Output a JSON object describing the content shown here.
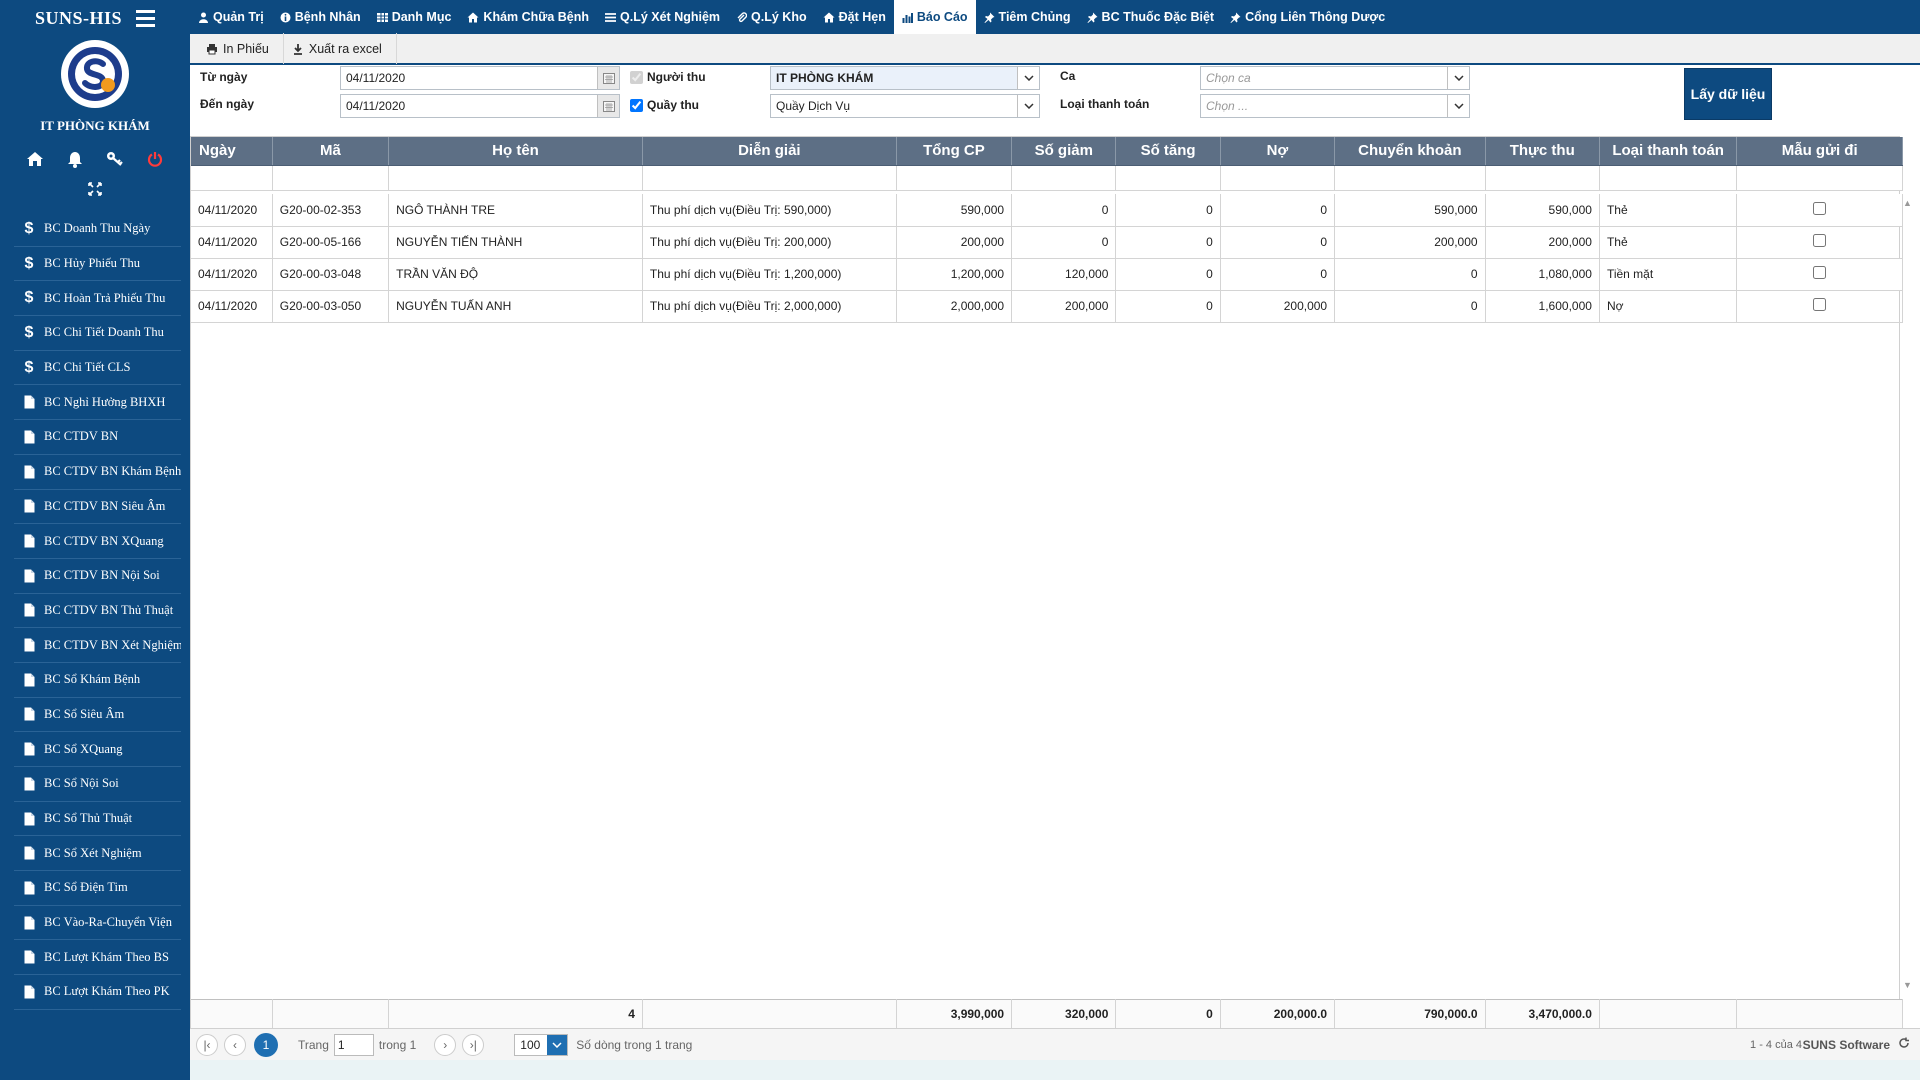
{
  "app": {
    "title": "SUNS-HIS",
    "unit": "IT PHÒNG KHÁM"
  },
  "nav": [
    {
      "label": "Quản Trị",
      "icon": "user-icon"
    },
    {
      "label": "Bệnh Nhân",
      "icon": "info-icon"
    },
    {
      "label": "Danh Mục",
      "icon": "table-icon"
    },
    {
      "label": "Khám Chữa Bệnh",
      "icon": "home-icon"
    },
    {
      "label": "Q.Lý Xét Nghiệm",
      "icon": "list-icon"
    },
    {
      "label": "Q.Lý Kho",
      "icon": "paperclip-icon"
    },
    {
      "label": "Đặt Hẹn",
      "icon": "home-icon"
    },
    {
      "label": "Báo Cáo",
      "icon": "bar-chart-icon",
      "active": true
    },
    {
      "label": "Tiêm Chủng",
      "icon": "pin-icon"
    },
    {
      "label": "BC Thuốc Đặc Biệt",
      "icon": "pin-icon"
    },
    {
      "label": "Cổng Liên Thông Dược",
      "icon": "pin-icon"
    }
  ],
  "sidebar": {
    "items": [
      {
        "label": "BC Doanh Thu Ngày",
        "icon": "dollar-icon"
      },
      {
        "label": "BC Hủy Phiếu Thu",
        "icon": "dollar-icon"
      },
      {
        "label": "BC Hoàn Trả Phiếu Thu",
        "icon": "dollar-icon"
      },
      {
        "label": "BC Chi Tiết Doanh Thu",
        "icon": "dollar-icon"
      },
      {
        "label": "BC Chi Tiết CLS",
        "icon": "dollar-icon"
      },
      {
        "label": "BC Nghỉ Hưởng BHXH",
        "icon": "file-icon"
      },
      {
        "label": "BC CTDV BN",
        "icon": "file-icon"
      },
      {
        "label": "BC CTDV BN Khám Bệnh",
        "icon": "file-icon"
      },
      {
        "label": "BC CTDV BN Siêu Âm",
        "icon": "file-icon"
      },
      {
        "label": "BC CTDV BN XQuang",
        "icon": "file-icon"
      },
      {
        "label": "BC CTDV BN Nội Soi",
        "icon": "file-icon"
      },
      {
        "label": "BC CTDV BN Thủ Thuật",
        "icon": "file-icon"
      },
      {
        "label": "BC CTDV BN Xét Nghiệm",
        "icon": "file-icon"
      },
      {
        "label": "BC Sổ Khám Bệnh",
        "icon": "file-icon"
      },
      {
        "label": "BC Sổ Siêu Âm",
        "icon": "file-icon"
      },
      {
        "label": "BC Sổ XQuang",
        "icon": "file-icon"
      },
      {
        "label": "BC Sổ Nội Soi",
        "icon": "file-icon"
      },
      {
        "label": "BC Sổ Thủ Thuật",
        "icon": "file-icon"
      },
      {
        "label": "BC Sổ Xét Nghiệm",
        "icon": "file-icon"
      },
      {
        "label": "BC Sổ Điện Tim",
        "icon": "file-icon"
      },
      {
        "label": "BC Vào-Ra-Chuyển Viện",
        "icon": "file-icon"
      },
      {
        "label": "BC Lượt Khám Theo BS",
        "icon": "file-icon"
      },
      {
        "label": "BC Lượt Khám Theo PK",
        "icon": "file-icon"
      }
    ]
  },
  "toolbar": {
    "print_label": "In Phiếu",
    "export_label": "Xuất ra excel"
  },
  "filters": {
    "from_label": "Từ ngày",
    "from_value": "04/11/2020",
    "to_label": "Đến ngày",
    "to_value": "04/11/2020",
    "collector_label": "Người thu",
    "collector_value": "IT PHÒNG KHÁM",
    "counter_label": "Quầy thu",
    "counter_value": "Quầy Dịch Vụ",
    "shift_label": "Ca",
    "shift_placeholder": "Chọn ca",
    "paytype_label": "Loại thanh toán",
    "paytype_placeholder": "Chọn ...",
    "fetch_label": "Lấy dữ liệu"
  },
  "table": {
    "columns": [
      "Ngày",
      "Mã",
      "Họ tên",
      "Diễn giải",
      "Tổng CP",
      "Số giảm",
      "Số tăng",
      "Nợ",
      "Chuyển khoản",
      "Thực thu",
      "Loại thanh toán",
      "Mẫu gửi đi"
    ],
    "rows": [
      [
        "04/11/2020",
        "G20-00-02-353",
        "NGÔ THÀNH TRE",
        "Thu phí dịch vụ(Điều Trị: 590,000)",
        "590,000",
        "0",
        "0",
        "0",
        "590,000",
        "590,000",
        "Thẻ"
      ],
      [
        "04/11/2020",
        "G20-00-05-166",
        "NGUYỄN TIẾN THÀNH",
        "Thu phí dịch vụ(Điều Trị: 200,000)",
        "200,000",
        "0",
        "0",
        "0",
        "200,000",
        "200,000",
        "Thẻ"
      ],
      [
        "04/11/2020",
        "G20-00-03-048",
        "TRẦN VĂN ĐỘ",
        "Thu phí dịch vụ(Điều Trị: 1,200,000)",
        "1,200,000",
        "120,000",
        "0",
        "0",
        "0",
        "1,080,000",
        "Tiền mặt"
      ],
      [
        "04/11/2020",
        "G20-00-03-050",
        "NGUYỄN TUẤN ANH",
        "Thu phí dịch vụ(Điều Trị: 2,000,000)",
        "2,000,000",
        "200,000",
        "0",
        "200,000",
        "0",
        "1,600,000",
        "Nợ"
      ]
    ],
    "totals": [
      "",
      "",
      "4",
      "",
      "3,990,000",
      "320,000",
      "0",
      "200,000.0",
      "790,000.0",
      "3,470,000.0",
      "",
      ""
    ]
  },
  "pager": {
    "current_page": "1",
    "page_label": "Trang",
    "page_input": "1",
    "of_label": "trong 1",
    "page_size": "100",
    "rows_label": "Số dòng trong 1 trang",
    "summary": "1 - 4 của 4",
    "brand": "SUNS Software"
  },
  "colors": {
    "primary": "#0d4a80",
    "header": "#5d6f85",
    "pager_accent": "#1f6fb2"
  }
}
